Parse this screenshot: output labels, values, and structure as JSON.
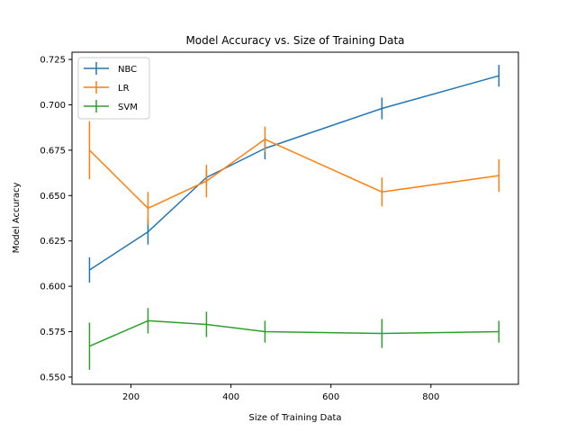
{
  "chart_data": {
    "type": "line",
    "title": "Model Accuracy vs. Size of Training Data",
    "xlabel": "Size of Training Data",
    "ylabel": "Model Accuracy",
    "xlim": [
      82,
      975
    ],
    "ylim": [
      0.546,
      0.729
    ],
    "xticks": [
      200,
      400,
      600,
      800
    ],
    "yticks": [
      0.55,
      0.575,
      0.6,
      0.625,
      0.65,
      0.675,
      0.7,
      0.725
    ],
    "ytick_labels": [
      "0.550",
      "0.575",
      "0.600",
      "0.625",
      "0.650",
      "0.675",
      "0.700",
      "0.725"
    ],
    "legend_position": "top-left",
    "grid": false,
    "x": [
      117,
      234,
      351,
      468,
      702,
      936
    ],
    "series": [
      {
        "name": "NBC",
        "color": "#1f77b4",
        "values": [
          0.609,
          0.63,
          0.66,
          0.676,
          0.698,
          0.716
        ],
        "errors": [
          0.007,
          0.007,
          0.004,
          0.006,
          0.006,
          0.006
        ]
      },
      {
        "name": "LR",
        "color": "#ff7f0e",
        "values": [
          0.675,
          0.643,
          0.658,
          0.681,
          0.652,
          0.661
        ],
        "errors": [
          0.016,
          0.009,
          0.009,
          0.007,
          0.008,
          0.009
        ]
      },
      {
        "name": "SVM",
        "color": "#2ca02c",
        "values": [
          0.567,
          0.581,
          0.579,
          0.575,
          0.574,
          0.575
        ],
        "errors": [
          0.013,
          0.007,
          0.007,
          0.006,
          0.008,
          0.006
        ]
      }
    ]
  }
}
